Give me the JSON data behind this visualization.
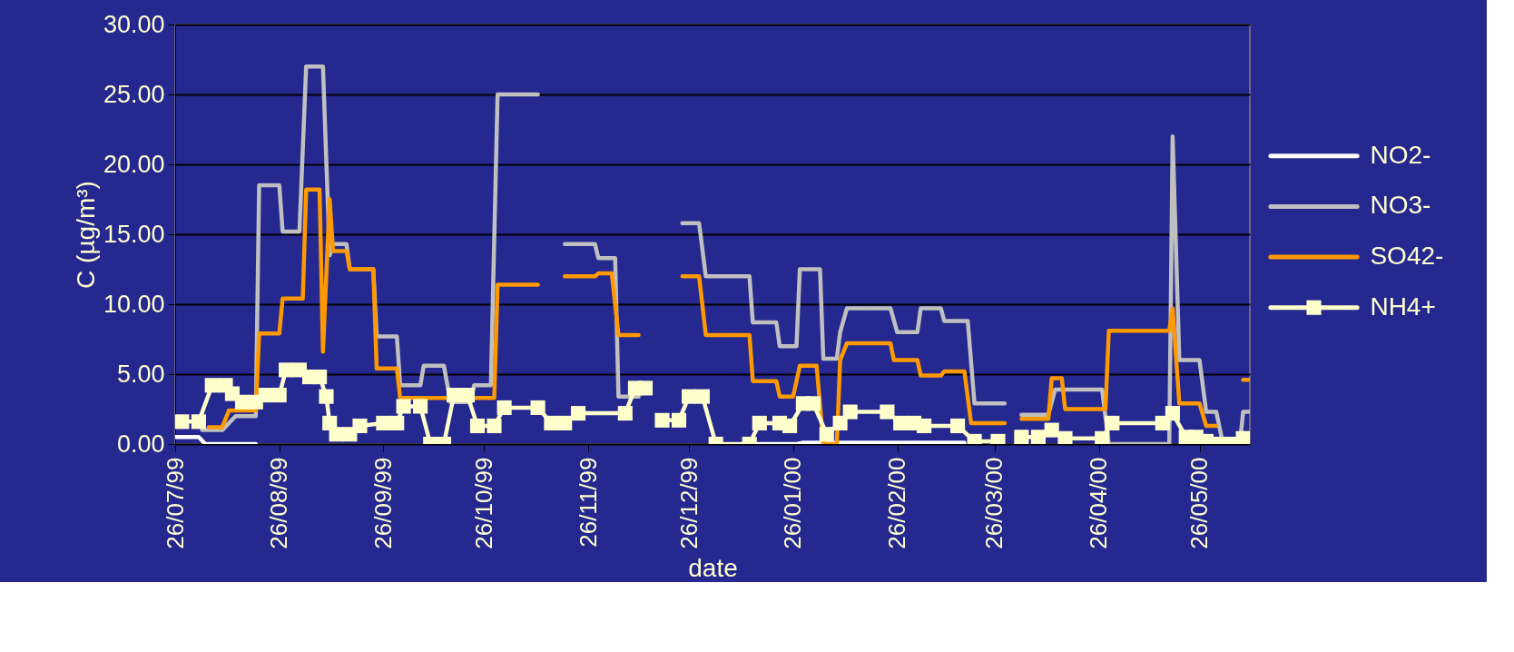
{
  "chart_data": {
    "type": "line",
    "xlabel": "date",
    "ylabel": "C (µg/m³)",
    "xlim": [
      "1999-07-26",
      "2000-06-10"
    ],
    "xticks": [
      {
        "value": "1999-07-26",
        "label": "26/07/99"
      },
      {
        "value": "1999-08-26",
        "label": "26/08/99"
      },
      {
        "value": "1999-09-26",
        "label": "26/09/99"
      },
      {
        "value": "1999-10-26",
        "label": "26/10/99"
      },
      {
        "value": "1999-11-26",
        "label": "26/11/99"
      },
      {
        "value": "1999-12-26",
        "label": "26/12/99"
      },
      {
        "value": "2000-01-26",
        "label": "26/01/00"
      },
      {
        "value": "2000-02-26",
        "label": "26/02/00"
      },
      {
        "value": "2000-03-26",
        "label": "26/03/00"
      },
      {
        "value": "2000-04-26",
        "label": "26/04/00"
      },
      {
        "value": "2000-05-26",
        "label": "26/05/00"
      }
    ],
    "ylim": [
      0,
      30
    ],
    "yticks": [
      {
        "value": 0,
        "label": "0.00"
      },
      {
        "value": 5,
        "label": "5.00"
      },
      {
        "value": 10,
        "label": "10.00"
      },
      {
        "value": 15,
        "label": "15.00"
      },
      {
        "value": 20,
        "label": "20.00"
      },
      {
        "value": 25,
        "label": "25.00"
      },
      {
        "value": 30,
        "label": "30.00"
      }
    ],
    "grid": "y",
    "legend": "right",
    "marker": "none",
    "line_style": "solid",
    "series": [
      {
        "name": "NO2-",
        "color": "#ffffff",
        "x": [
          "1999-07-26",
          "1999-08-02",
          "1999-08-04",
          "1999-08-19",
          "1999-10-01",
          "2000-01-15",
          "2000-01-27",
          "2000-01-29",
          "2000-03-17"
        ],
        "values": [
          0.5,
          0.5,
          0,
          0,
          null,
          0,
          0,
          0.1,
          0.1
        ]
      },
      {
        "name": "NO3-",
        "color": "#c0c0c0",
        "x": [
          "1999-08-03",
          "1999-08-09",
          "1999-08-13",
          "1999-08-19",
          "1999-08-20",
          "1999-08-26",
          "1999-08-27",
          "1999-09-01",
          "1999-09-03",
          "1999-09-08",
          "1999-09-10",
          "1999-09-11",
          "1999-09-15",
          "1999-09-16",
          "1999-09-23",
          "1999-09-24",
          "1999-09-30",
          "1999-10-01",
          "1999-10-07",
          "1999-10-08",
          "1999-10-14",
          "1999-10-16",
          "1999-10-22",
          "1999-10-23",
          "1999-10-28",
          "1999-10-30",
          "1999-11-11",
          "1999-11-15",
          "1999-11-19",
          "1999-11-28",
          "1999-11-29",
          "1999-12-04",
          "1999-12-05",
          "1999-12-11",
          "1999-12-18",
          "1999-12-24",
          "1999-12-29",
          "1999-12-31",
          "2000-01-13",
          "2000-01-14",
          "2000-01-21",
          "2000-01-22",
          "2000-01-27",
          "2000-01-28",
          "2000-02-03",
          "2000-02-04",
          "2000-02-08",
          "2000-02-09",
          "2000-02-11",
          "2000-02-24",
          "2000-02-26",
          "2000-03-03",
          "2000-03-04",
          "2000-03-10",
          "2000-03-11",
          "2000-03-18",
          "2000-03-20",
          "2000-03-29",
          "2000-04-01",
          "2000-04-03",
          "2000-04-11",
          "2000-04-13",
          "2000-04-27",
          "2000-04-29",
          "2000-05-17",
          "2000-05-18",
          "2000-05-20",
          "2000-05-26",
          "2000-05-28",
          "2000-05-31",
          "2000-06-02",
          "2000-06-07",
          "2000-06-08",
          "2000-06-10"
        ],
        "values": [
          1.0,
          1.0,
          2.0,
          2.0,
          18.5,
          18.5,
          15.2,
          15.2,
          27.0,
          27.0,
          13.5,
          14.3,
          14.3,
          12.5,
          12.5,
          7.7,
          7.7,
          4.2,
          4.2,
          5.6,
          5.6,
          3.0,
          3.0,
          4.2,
          4.2,
          25.0,
          25.0,
          null,
          14.3,
          14.3,
          13.3,
          13.3,
          3.4,
          3.4,
          null,
          15.8,
          15.8,
          12.0,
          12.0,
          8.7,
          8.7,
          7.0,
          7.0,
          12.5,
          12.5,
          6.1,
          6.1,
          8.0,
          9.7,
          9.7,
          8.0,
          8.0,
          9.7,
          9.7,
          8.8,
          8.8,
          2.9,
          2.9,
          null,
          2.1,
          2.1,
          3.9,
          3.9,
          0.0,
          0.0,
          22.0,
          6.0,
          6.0,
          2.3,
          2.3,
          0.0,
          0.0,
          2.3,
          2.3
        ]
      },
      {
        "name": "SO42-",
        "color": "#ff9900",
        "x": [
          "1999-08-05",
          "1999-08-09",
          "1999-08-11",
          "1999-08-19",
          "1999-08-20",
          "1999-08-26",
          "1999-08-27",
          "1999-09-02",
          "1999-09-03",
          "1999-09-07",
          "1999-09-08",
          "1999-09-10",
          "1999-09-11",
          "1999-09-15",
          "1999-09-16",
          "1999-09-23",
          "1999-09-24",
          "1999-09-30",
          "1999-10-01",
          "1999-10-29",
          "1999-10-30",
          "1999-11-11",
          "1999-11-15",
          "1999-11-19",
          "1999-11-28",
          "1999-11-29",
          "1999-12-03",
          "1999-12-05",
          "1999-12-11",
          "1999-12-18",
          "1999-12-24",
          "1999-12-29",
          "1999-12-31",
          "2000-01-13",
          "2000-01-14",
          "2000-01-21",
          "2000-01-22",
          "2000-01-26",
          "2000-01-28",
          "2000-02-02",
          "2000-02-04",
          "2000-02-08",
          "2000-02-09",
          "2000-02-11",
          "2000-02-24",
          "2000-02-25",
          "2000-03-03",
          "2000-03-04",
          "2000-03-10",
          "2000-03-11",
          "2000-03-17",
          "2000-03-19",
          "2000-03-29",
          "2000-04-01",
          "2000-04-03",
          "2000-04-11",
          "2000-04-12",
          "2000-04-15",
          "2000-04-16",
          "2000-04-28",
          "2000-04-29",
          "2000-05-17",
          "2000-05-18",
          "2000-05-20",
          "2000-05-26",
          "2000-05-28",
          "2000-05-31",
          "2000-06-02",
          "2000-06-07",
          "2000-06-08",
          "2000-06-10"
        ],
        "values": [
          1.2,
          1.2,
          2.4,
          2.4,
          7.9,
          7.9,
          10.4,
          10.4,
          18.2,
          18.2,
          6.6,
          17.5,
          13.8,
          13.8,
          12.5,
          12.5,
          5.4,
          5.4,
          3.3,
          3.3,
          11.4,
          11.4,
          null,
          12.0,
          12.0,
          12.2,
          12.2,
          7.8,
          7.8,
          null,
          12.0,
          12.0,
          7.8,
          7.8,
          4.5,
          4.5,
          3.4,
          3.4,
          5.6,
          5.6,
          0.0,
          0.0,
          6.0,
          7.2,
          7.2,
          6.0,
          6.0,
          4.9,
          4.9,
          5.2,
          5.2,
          1.5,
          1.5,
          null,
          1.8,
          1.8,
          4.7,
          4.7,
          2.5,
          2.5,
          8.1,
          8.1,
          9.7,
          2.9,
          2.9,
          1.3,
          1.3,
          null,
          null,
          4.6,
          4.6
        ]
      },
      {
        "name": "NH4+",
        "color": "#ffffcc",
        "marker": "square",
        "x": [
          "1999-07-28",
          "1999-08-02",
          "1999-08-06",
          "1999-08-10",
          "1999-08-12",
          "1999-08-15",
          "1999-08-19",
          "1999-08-22",
          "1999-08-26",
          "1999-08-28",
          "1999-09-01",
          "1999-09-04",
          "1999-09-07",
          "1999-09-09",
          "1999-09-10",
          "1999-09-12",
          "1999-09-16",
          "1999-09-19",
          "1999-09-26",
          "1999-09-30",
          "1999-10-02",
          "1999-10-07",
          "1999-10-10",
          "1999-10-14",
          "1999-10-17",
          "1999-10-21",
          "1999-10-24",
          "1999-10-29",
          "1999-11-01",
          "1999-11-11",
          "1999-11-15",
          "1999-11-19",
          "1999-11-23",
          "1999-12-07",
          "1999-12-10",
          "1999-12-13",
          "1999-12-15",
          "1999-12-18",
          "1999-12-23",
          "1999-12-26",
          "1999-12-30",
          "2000-01-03",
          "2000-01-13",
          "2000-01-16",
          "2000-01-22",
          "2000-01-25",
          "2000-01-29",
          "2000-02-01",
          "2000-02-05",
          "2000-02-09",
          "2000-02-12",
          "2000-02-23",
          "2000-02-27",
          "2000-03-02",
          "2000-03-05",
          "2000-03-15",
          "2000-03-20",
          "2000-03-27",
          "2000-03-30",
          "2000-04-03",
          "2000-04-08",
          "2000-04-12",
          "2000-04-16",
          "2000-04-27",
          "2000-04-30",
          "2000-05-15",
          "2000-05-18",
          "2000-05-22",
          "2000-05-25",
          "2000-05-28",
          "2000-06-01",
          "2000-06-04",
          "2000-06-08",
          "2000-06-10"
        ],
        "values": [
          1.6,
          1.6,
          4.2,
          4.2,
          3.6,
          3.0,
          3.0,
          3.5,
          3.5,
          5.3,
          5.3,
          4.8,
          4.8,
          3.4,
          1.5,
          0.7,
          0.7,
          1.3,
          1.5,
          1.5,
          2.7,
          2.7,
          0.0,
          0.0,
          3.5,
          3.5,
          1.3,
          1.3,
          2.6,
          2.6,
          1.5,
          1.5,
          2.2,
          2.2,
          4.0,
          4.0,
          null,
          1.7,
          1.7,
          3.4,
          3.4,
          0.0,
          0.0,
          1.5,
          1.5,
          1.3,
          2.9,
          2.9,
          0.7,
          1.5,
          2.3,
          2.3,
          1.5,
          1.5,
          1.3,
          1.3,
          0.2,
          0.2,
          null,
          0.5,
          0.5,
          1.0,
          0.4,
          0.4,
          1.5,
          1.5,
          2.2,
          0.5,
          0.5,
          0.2,
          0.0,
          0.0,
          0.4,
          0.4
        ]
      }
    ]
  }
}
